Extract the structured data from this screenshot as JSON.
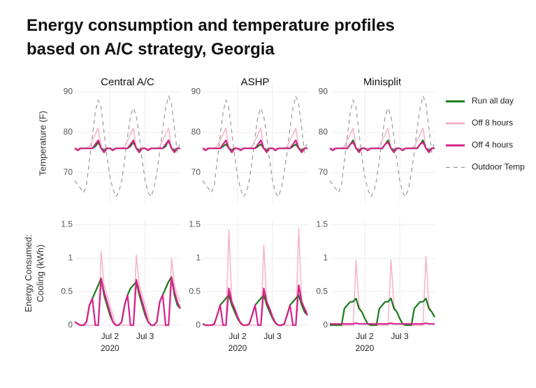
{
  "chart_data": {
    "type": "line",
    "title": "Energy consumption and temperature profiles based on A/C strategy, Georgia",
    "columns": [
      "Central A/C",
      "ASHP",
      "Minisplit"
    ],
    "x": [
      0,
      2,
      4,
      6,
      8,
      10,
      12,
      14,
      16,
      18,
      20,
      22,
      24,
      26,
      28,
      30,
      32,
      34,
      36,
      38,
      40,
      42,
      44,
      46,
      48,
      50,
      52,
      54,
      56,
      58,
      60,
      62,
      64,
      66,
      68,
      70,
      72
    ],
    "xlim": [
      0,
      72
    ],
    "xticks": [
      {
        "value": 24,
        "label": "Jul 2"
      },
      {
        "value": 48,
        "label": "Jul 3"
      }
    ],
    "xtick_sublabel": "2020",
    "grid": true,
    "legend": [
      {
        "name": "Run all day",
        "color": "#1a7a1a",
        "dashed": false
      },
      {
        "name": "Off 8 hours",
        "color": "#f4b6cc",
        "dashed": false
      },
      {
        "name": "Off 4 hours",
        "color": "#d6218a",
        "dashed": false
      },
      {
        "name": "Outdoor Temp",
        "color": "#9a9a9a",
        "dashed": true
      }
    ],
    "rows": [
      {
        "ylabel": [
          "Temperature (F)"
        ],
        "ylim": [
          62.5,
          92
        ],
        "yticks": [
          70,
          80,
          90
        ]
      },
      {
        "ylabel": [
          "Energy Consumed:",
          "Cooling (kWh)"
        ],
        "ylim": [
          -0.05,
          1.6
        ],
        "yticks": [
          0,
          0.5,
          1,
          1.5
        ]
      }
    ],
    "panels": [
      [
        [
          [
            76,
            75.5,
            76,
            76,
            76,
            76,
            76,
            76.5,
            77.5,
            76,
            75.5,
            76,
            76,
            75.5,
            76,
            76,
            76,
            76,
            76,
            76.5,
            77.5,
            76,
            75.5,
            76,
            76,
            75.5,
            76,
            76,
            76,
            76,
            76,
            76.5,
            78,
            76,
            75.5,
            76,
            76
          ],
          [
            76,
            76,
            76,
            76,
            76,
            76.5,
            78,
            79.5,
            81,
            76,
            76,
            76,
            76,
            76,
            76,
            76,
            76,
            76.5,
            78,
            79.5,
            81,
            76,
            76,
            76,
            76,
            76,
            76,
            76,
            76,
            76.5,
            78,
            79.5,
            81,
            76,
            76,
            76,
            76
          ],
          [
            76,
            75.5,
            76,
            76,
            76,
            76,
            76,
            77,
            78,
            76,
            75,
            76,
            76,
            75.5,
            76,
            76,
            76,
            76,
            76,
            77,
            78,
            76,
            75,
            76,
            76,
            75.5,
            76,
            76,
            76,
            76,
            76,
            77,
            78,
            76,
            75,
            76,
            76
          ],
          [
            68,
            67,
            66,
            65,
            67,
            73,
            79,
            85,
            88,
            86,
            80,
            74,
            69,
            66,
            64,
            65,
            68,
            73,
            79,
            84,
            86,
            84,
            79,
            73,
            68,
            65,
            64,
            66,
            70,
            75,
            81,
            86,
            89,
            87,
            81,
            75,
            78
          ]
        ],
        [
          [
            76,
            75.5,
            76,
            76,
            76,
            76,
            76,
            76.5,
            77,
            76,
            75.5,
            76,
            76,
            75.5,
            76,
            76,
            76,
            76,
            76,
            76.5,
            77,
            76,
            75.5,
            76,
            76,
            75.5,
            76,
            76,
            76,
            76,
            76,
            76.5,
            77,
            76,
            75.5,
            76,
            76
          ],
          [
            76,
            76,
            76,
            76,
            76,
            76.5,
            78,
            79.5,
            81,
            76,
            76,
            76,
            76,
            76,
            76,
            76,
            76,
            76.5,
            78,
            79.5,
            81,
            76,
            76,
            76,
            76,
            76,
            76,
            76,
            76,
            76.5,
            78,
            79.5,
            81,
            76,
            76,
            76,
            76
          ],
          [
            76,
            75.5,
            76,
            76,
            76,
            76,
            76,
            77,
            78,
            76,
            75,
            76,
            76,
            75.5,
            76,
            76,
            76,
            76,
            76,
            77,
            78,
            76,
            75,
            76,
            76,
            75.5,
            76,
            76,
            76,
            76,
            76,
            77,
            78,
            76,
            75,
            76,
            76
          ],
          [
            68,
            67,
            66,
            65,
            67,
            73,
            79,
            85,
            88,
            86,
            80,
            74,
            69,
            66,
            64,
            65,
            68,
            73,
            79,
            84,
            86,
            84,
            79,
            73,
            68,
            65,
            64,
            66,
            70,
            75,
            81,
            86,
            89,
            87,
            81,
            75,
            78
          ]
        ],
        [
          [
            76,
            75.5,
            76,
            76,
            76,
            76,
            76,
            77,
            78,
            76,
            75.5,
            76,
            76,
            75.5,
            76,
            76,
            76,
            76,
            76,
            77,
            78,
            76,
            75.5,
            76,
            76,
            75.5,
            76,
            76,
            76,
            76,
            76,
            77,
            78,
            76,
            75.5,
            76,
            76
          ],
          [
            76,
            76,
            76,
            76,
            76,
            76.5,
            78,
            79.5,
            81,
            76,
            76,
            76,
            76,
            76,
            76,
            76,
            76,
            76.5,
            78,
            79.5,
            81,
            76,
            76,
            76,
            76,
            76,
            76,
            76,
            76,
            76.5,
            78,
            79.5,
            81,
            76,
            76,
            76,
            76
          ],
          [
            76,
            75.5,
            76,
            76,
            76,
            76,
            76,
            77,
            77.5,
            76,
            75,
            76,
            76,
            75.5,
            76,
            76,
            76,
            76,
            76,
            77,
            77.5,
            76,
            75,
            76,
            76,
            75.5,
            76,
            76,
            76,
            76,
            76,
            77,
            77.5,
            76,
            75,
            76,
            76
          ],
          [
            68,
            67,
            66,
            65,
            67,
            73,
            79,
            85,
            88,
            86,
            80,
            74,
            69,
            66,
            64,
            65,
            68,
            73,
            79,
            84,
            86,
            84,
            79,
            73,
            68,
            65,
            64,
            66,
            70,
            75,
            81,
            86,
            89,
            87,
            81,
            75,
            78
          ]
        ]
      ],
      [
        [
          [
            0.05,
            0.02,
            0,
            0,
            0.05,
            0.3,
            0.4,
            0.5,
            0.6,
            0.7,
            0.45,
            0.3,
            0.15,
            0.05,
            0,
            0,
            0.05,
            0.3,
            0.45,
            0.55,
            0.6,
            0.65,
            0.45,
            0.3,
            0.15,
            0.05,
            0,
            0,
            0.05,
            0.35,
            0.45,
            0.55,
            0.65,
            0.72,
            0.45,
            0.3,
            0.25
          ],
          [
            0.05,
            0.02,
            0,
            0,
            0,
            0,
            0,
            0,
            0,
            1.1,
            0.6,
            0.45,
            0.3,
            0.15,
            0,
            0,
            0,
            0,
            0,
            0,
            0,
            1.05,
            0.6,
            0.45,
            0.3,
            0.15,
            0,
            0,
            0,
            0,
            0,
            0,
            0,
            1,
            0.6,
            0.45,
            0.35
          ],
          [
            0.05,
            0.02,
            0,
            0,
            0.05,
            0.3,
            0.4,
            0,
            0,
            0.7,
            0.5,
            0.35,
            0.2,
            0.05,
            0,
            0,
            0.05,
            0.3,
            0.45,
            0,
            0,
            0.68,
            0.5,
            0.35,
            0.2,
            0.05,
            0,
            0,
            0.05,
            0.35,
            0.45,
            0,
            0,
            0.72,
            0.5,
            0.35,
            0.25
          ]
        ],
        [
          [
            0.02,
            0,
            0,
            0,
            0.02,
            0.15,
            0.3,
            0.35,
            0.4,
            0.45,
            0.3,
            0.2,
            0.1,
            0.03,
            0,
            0,
            0.02,
            0.15,
            0.3,
            0.35,
            0.4,
            0.45,
            0.3,
            0.2,
            0.1,
            0.03,
            0,
            0,
            0.02,
            0.15,
            0.3,
            0.35,
            0.4,
            0.45,
            0.3,
            0.2,
            0.15
          ],
          [
            0.02,
            0,
            0,
            0,
            0,
            0,
            0,
            0,
            0,
            1.42,
            0.35,
            0.25,
            0.15,
            0.05,
            0,
            0,
            0,
            0,
            0,
            0,
            0,
            1.2,
            0.35,
            0.25,
            0.15,
            0.05,
            0,
            0,
            0,
            0,
            0,
            0,
            0,
            1.45,
            0.35,
            0.25,
            0.2
          ],
          [
            0.02,
            0,
            0,
            0,
            0.02,
            0.15,
            0.3,
            0,
            0,
            0.55,
            0.35,
            0.25,
            0.12,
            0.03,
            0,
            0,
            0.02,
            0.15,
            0.3,
            0,
            0,
            0.55,
            0.35,
            0.25,
            0.12,
            0.03,
            0,
            0,
            0.02,
            0.15,
            0.3,
            0,
            0,
            0.6,
            0.35,
            0.25,
            0.15
          ]
        ],
        [
          [
            0,
            0,
            0,
            0,
            0,
            0.25,
            0.3,
            0.35,
            0.35,
            0.4,
            0.25,
            0.2,
            0.1,
            0.02,
            0,
            0,
            0,
            0.25,
            0.3,
            0.35,
            0.35,
            0.4,
            0.25,
            0.2,
            0.1,
            0.02,
            0,
            0,
            0,
            0.25,
            0.3,
            0.35,
            0.35,
            0.4,
            0.25,
            0.2,
            0.12
          ],
          [
            0,
            0,
            0,
            0,
            0,
            0,
            0,
            0,
            0,
            0.97,
            0.3,
            0.2,
            0.1,
            0.02,
            0,
            0,
            0,
            0,
            0,
            0,
            0,
            0.98,
            0.3,
            0.2,
            0.1,
            0.02,
            0,
            0,
            0,
            0,
            0,
            0,
            0,
            1.03,
            0.3,
            0.2,
            0.15
          ],
          [
            0.02,
            0.02,
            0.02,
            0.02,
            0.02,
            0.02,
            0.02,
            0.02,
            0.02,
            0.03,
            0.02,
            0.02,
            0.02,
            0.02,
            0.02,
            0.02,
            0.02,
            0.02,
            0.02,
            0.02,
            0.02,
            0.03,
            0.02,
            0.02,
            0.02,
            0.02,
            0.02,
            0.02,
            0.02,
            0.02,
            0.02,
            0.02,
            0.02,
            0.03,
            0.02,
            0.02,
            0.02
          ]
        ]
      ]
    ]
  }
}
